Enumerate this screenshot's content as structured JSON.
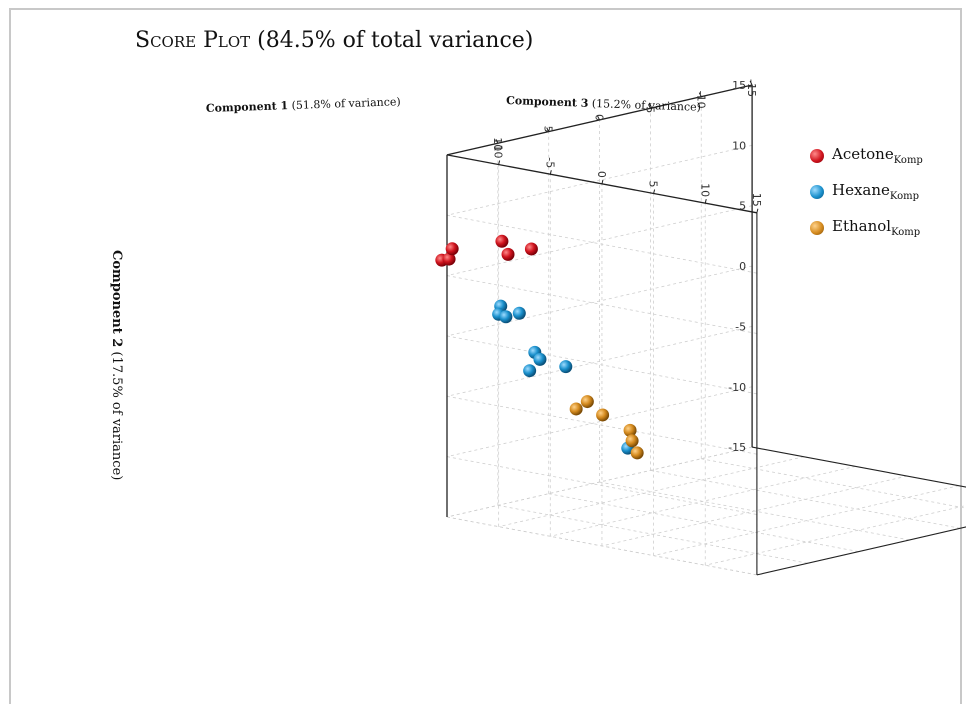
{
  "chart_data": {
    "type": "scatter",
    "title_sc": "Score Plot",
    "title_rest": " (84.5% of total variance)",
    "axes": {
      "x": {
        "label_bold": "Component 1",
        "label_rest": " (51.8% of variance)",
        "range": [
          -15,
          15
        ],
        "ticks": [
          "-15",
          "-10",
          "-5",
          "0",
          "5",
          "10",
          "15"
        ]
      },
      "y": {
        "label_bold": "Component 2",
        "label_rest": " (17.5% of variance)",
        "range": [
          -15,
          15
        ],
        "ticks": [
          "-15",
          "-10",
          "-5",
          "0",
          "5",
          "10",
          "15"
        ]
      },
      "z": {
        "label_bold": "Component 3",
        "label_rest": " (15.2% of variance)",
        "range": [
          -15,
          15
        ],
        "ticks": [
          "-15",
          "-10",
          "-5",
          "0",
          "5",
          "10",
          "15"
        ]
      }
    },
    "grid": true,
    "legend_position": "right",
    "series": [
      {
        "name": "Acetone",
        "subscript": "Komp",
        "color": "#d0141e",
        "points": [
          {
            "x": 6.7,
            "y": 5.6,
            "z": -15
          },
          {
            "x": 9.0,
            "y": 5.6,
            "z": -15
          },
          {
            "x": 9.6,
            "y": 6.8,
            "z": -15
          },
          {
            "x": 15,
            "y": 6.2,
            "z": -15.5
          },
          {
            "x": 15,
            "y": 6.4,
            "z": -14.8
          },
          {
            "x": 15,
            "y": 7.3,
            "z": -14.5
          }
        ]
      },
      {
        "name": "Hexane",
        "subscript": "Komp",
        "color": "#1a90cc",
        "points": [
          {
            "x": 15,
            "y": 3.3,
            "z": -9.8
          },
          {
            "x": 15,
            "y": 2.6,
            "z": -10.0
          },
          {
            "x": 15,
            "y": 2.5,
            "z": -9.3
          },
          {
            "x": 15,
            "y": 3.0,
            "z": -8.0
          },
          {
            "x": 15,
            "y": 0.0,
            "z": -6.5
          },
          {
            "x": 15,
            "y": -0.5,
            "z": -6.0
          },
          {
            "x": 15,
            "y": -1.6,
            "z": -7.0
          },
          {
            "x": 15,
            "y": -0.7,
            "z": -3.5
          },
          {
            "x": 15,
            "y": -6.5,
            "z": 2.5
          }
        ]
      },
      {
        "name": "Ethanol",
        "subscript": "Komp",
        "color": "#d48a1e",
        "points": [
          {
            "x": -3.0,
            "y": -11.3,
            "z": -15
          },
          {
            "x": -3.2,
            "y": -12.2,
            "z": -15
          },
          {
            "x": -3.7,
            "y": -13.3,
            "z": -15
          },
          {
            "x": -0.3,
            "y": -9.5,
            "z": -15
          },
          {
            "x": 1.2,
            "y": -8.1,
            "z": -15
          },
          {
            "x": 2.3,
            "y": -8.5,
            "z": -15
          }
        ]
      }
    ]
  }
}
